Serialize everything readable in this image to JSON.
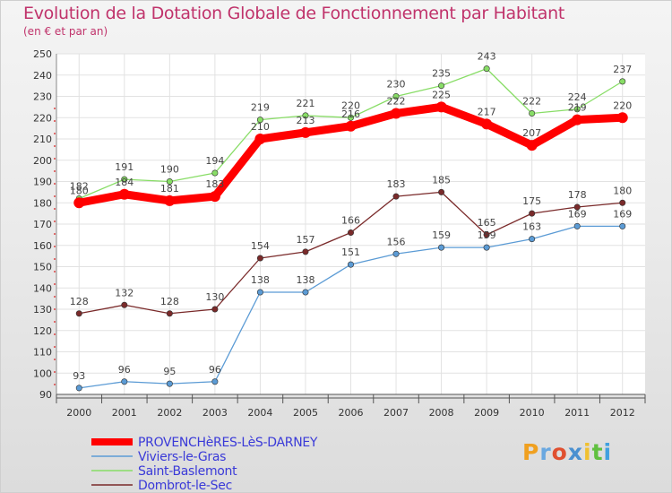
{
  "title": "Evolution de la Dotation Globale de Fonctionnement par Habitant",
  "subtitle": "(en € et par an)",
  "logo": {
    "text": "Proxiti",
    "colors": [
      "#f0a020",
      "#6aa8e0",
      "#e05030",
      "#4a90d0",
      "#f0c030",
      "#60c040",
      "#40a0e0"
    ]
  },
  "chart_data": {
    "type": "line",
    "x": [
      "2000",
      "2001",
      "2002",
      "2003",
      "2004",
      "2005",
      "2006",
      "2007",
      "2008",
      "2009",
      "2010",
      "2011",
      "2012"
    ],
    "ylim": [
      90,
      250
    ],
    "yticks": [
      90,
      100,
      110,
      120,
      130,
      140,
      150,
      160,
      170,
      180,
      190,
      200,
      210,
      220,
      230,
      240,
      250
    ],
    "grid": true,
    "legend_position": "bottom-left",
    "series": [
      {
        "name": "PROVENCHèRES-LèS-DARNEY",
        "color": "#ff0000",
        "thick": true,
        "values": [
          180,
          184,
          181,
          183,
          210,
          213,
          216,
          222,
          225,
          217,
          207,
          219,
          220
        ],
        "labels": [
          "180",
          "184",
          "181",
          "183",
          "210",
          "213",
          "216",
          "222",
          "225",
          "217",
          "207",
          "219",
          "220"
        ]
      },
      {
        "name": "Viviers-le-Gras",
        "color": "#5b9bd5",
        "thick": false,
        "values": [
          93,
          96,
          95,
          96,
          138,
          138,
          151,
          156,
          159,
          159,
          163,
          169,
          169
        ],
        "labels": [
          "93",
          "96",
          "95",
          "96",
          "138",
          "138",
          "151",
          "156",
          "159",
          "159",
          "163",
          "169",
          "169"
        ]
      },
      {
        "name": "Saint-Baslemont",
        "color": "#88dd66",
        "thick": false,
        "values": [
          182,
          191,
          190,
          194,
          219,
          221,
          220,
          230,
          235,
          243,
          222,
          224,
          237
        ],
        "labels": [
          "182",
          "191",
          "190",
          "194",
          "219",
          "221",
          "220",
          "230",
          "235",
          "243",
          "222",
          "224",
          "237"
        ]
      },
      {
        "name": "Dombrot-le-Sec",
        "color": "#7a2a2a",
        "thick": false,
        "values": [
          128,
          132,
          128,
          130,
          154,
          157,
          166,
          183,
          185,
          165,
          175,
          178,
          180
        ],
        "labels": [
          "128",
          "132",
          "128",
          "130",
          "154",
          "157",
          "166",
          "183",
          "185",
          "165",
          "175",
          "178",
          "180"
        ]
      }
    ]
  }
}
